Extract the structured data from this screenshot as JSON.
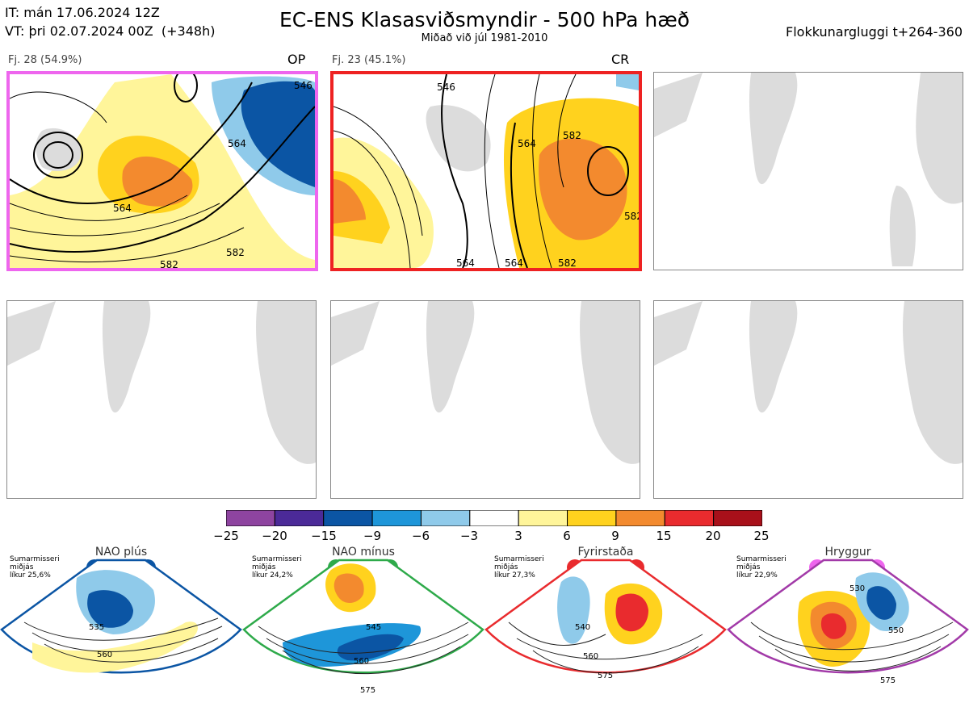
{
  "header": {
    "it_line": "IT: mán 17.06.2024 12Z",
    "vt_line": "VT: þri 02.07.2024 00Z  (+348h)",
    "title": "EC-ENS Klasasviðsmyndir - 500 hPa hæð",
    "subtitle": "Miðað við júl 1981-2010",
    "window": "Flokkunargluggi t+264-360"
  },
  "panels": [
    {
      "label": "Fj. 28 (54.9%)",
      "tag": "OP",
      "border": "#ee66ee",
      "contours": [
        "546",
        "564",
        "564",
        "582",
        "582"
      ]
    },
    {
      "label": "Fj. 23 (45.1%)",
      "tag": "CR",
      "border": "#ee2222",
      "contours": [
        "546",
        "564",
        "564",
        "564",
        "582",
        "582",
        "582"
      ]
    }
  ],
  "colorbar": {
    "ticks": [
      "−25",
      "−20",
      "−15",
      "−9",
      "−6",
      "−3",
      "3",
      "6",
      "9",
      "15",
      "20",
      "25"
    ],
    "colors": [
      "#8e44a0",
      "#4b2a98",
      "#0b55a4",
      "#1e96d9",
      "#8fcaea",
      "#ffffff",
      "#fff59a",
      "#ffd21e",
      "#f38a2e",
      "#e92b2e",
      "#a8101a"
    ]
  },
  "regimes": [
    {
      "name": "NAO plús",
      "season": "Sumarmisseri",
      "note": "miðjás",
      "prob": "líkur 25,6%",
      "color": "#0b55a4",
      "labels": [
        "535",
        "560"
      ]
    },
    {
      "name": "NAO mínus",
      "season": "Sumarmisseri",
      "note": "miðjás",
      "prob": "líkur 24,2%",
      "color": "#2eaa4a",
      "labels": [
        "545",
        "560",
        "575"
      ]
    },
    {
      "name": "Fyrirstaða",
      "season": "Sumarmisseri",
      "note": "miðjás",
      "prob": "líkur 27,3%",
      "color": "#e92b2e",
      "labels": [
        "540",
        "560",
        "575"
      ]
    },
    {
      "name": "Hryggur",
      "season": "Sumarmisseri",
      "note": "miðjás",
      "prob": "líkur 22,9%",
      "color": "#a23aa8",
      "labels": [
        "530",
        "550",
        "575"
      ]
    }
  ]
}
